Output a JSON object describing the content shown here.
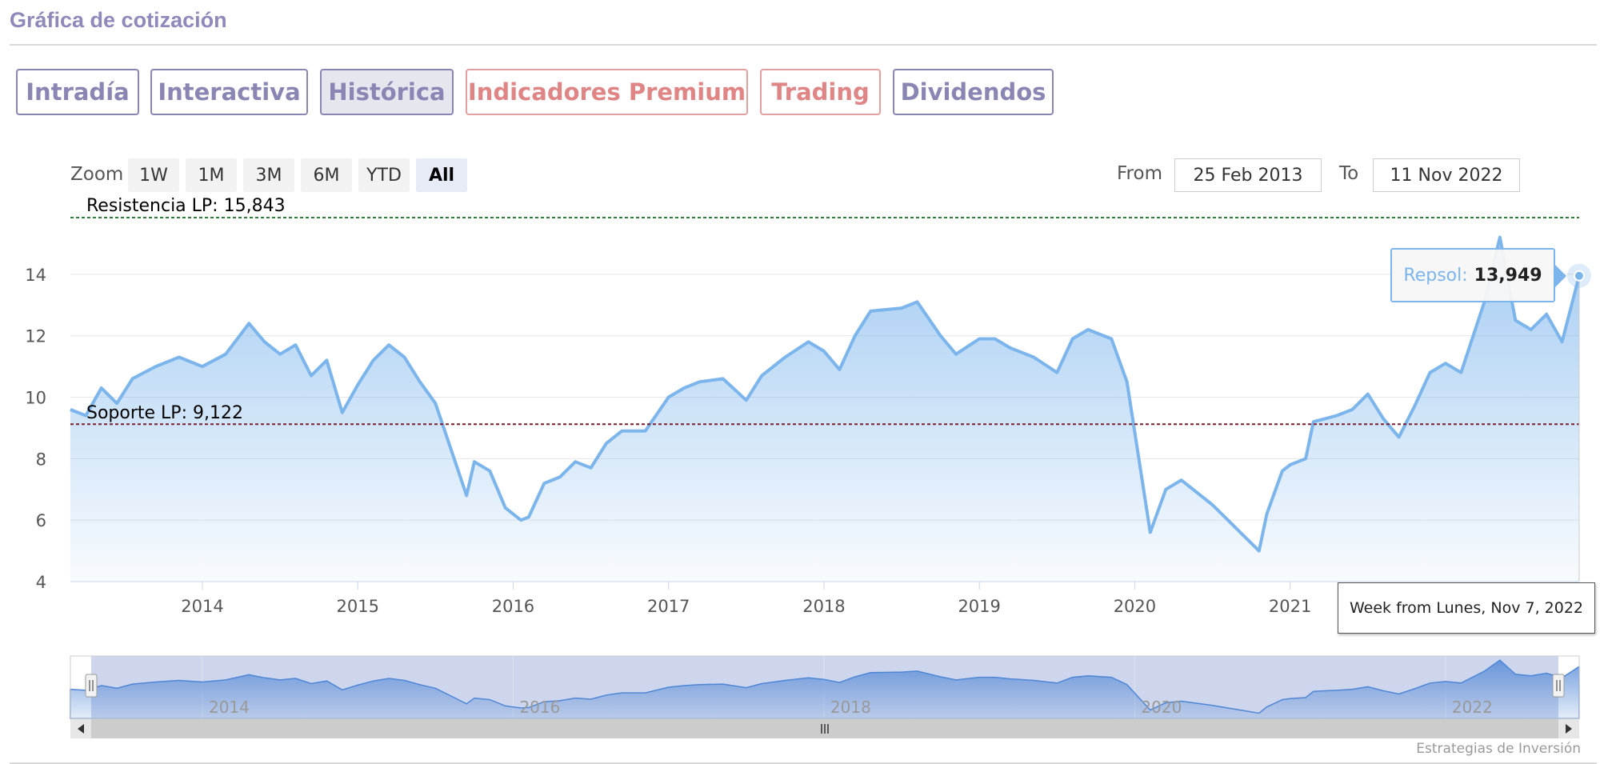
{
  "page": {
    "title": "Gráfica de cotización"
  },
  "tabs": [
    {
      "label": "Intradía"
    },
    {
      "label": "Interactiva"
    },
    {
      "label": "Histórica"
    },
    {
      "label": "Indicadores Premium"
    },
    {
      "label": "Trading"
    },
    {
      "label": "Dividendos"
    }
  ],
  "range_selector": {
    "zoom_label": "Zoom",
    "buttons": [
      "1W",
      "1M",
      "3M",
      "6M",
      "YTD",
      "All"
    ],
    "selected": "All",
    "from_label": "From",
    "from_value": "25 Feb 2013",
    "to_label": "To",
    "to_value": "11 Nov 2022"
  },
  "tooltip": {
    "series": "Repsol",
    "value": "13,949",
    "x_label": "Week from Lunes, Nov 7, 2022"
  },
  "credits": "Estrategias de Inversión",
  "colors": {
    "series": "#7cb5ec",
    "resistance": "#2e7d32",
    "support": "#7a1f2e",
    "tab_border": "#8a86b4",
    "premium": "#e08585"
  },
  "chart_data": {
    "type": "area",
    "title": "",
    "series_name": "Repsol",
    "x_unit": "year",
    "ylim": [
      4,
      15.843
    ],
    "xlim": [
      "2013-02-25",
      "2022-11-11"
    ],
    "yticks": [
      4,
      6,
      8,
      10,
      12,
      14
    ],
    "xticks": [
      "2014",
      "2015",
      "2016",
      "2017",
      "2018",
      "2019",
      "2020",
      "2021"
    ],
    "navigator_xticks": [
      "2014",
      "2016",
      "2018",
      "2020",
      "2022"
    ],
    "grid": true,
    "x": [
      2013.15,
      2013.25,
      2013.35,
      2013.45,
      2013.55,
      2013.7,
      2013.85,
      2014.0,
      2014.15,
      2014.3,
      2014.4,
      2014.5,
      2014.6,
      2014.7,
      2014.8,
      2014.9,
      2015.0,
      2015.1,
      2015.2,
      2015.3,
      2015.4,
      2015.5,
      2015.6,
      2015.7,
      2015.75,
      2015.85,
      2015.95,
      2016.05,
      2016.1,
      2016.2,
      2016.3,
      2016.4,
      2016.5,
      2016.6,
      2016.7,
      2016.85,
      2017.0,
      2017.1,
      2017.2,
      2017.35,
      2017.5,
      2017.6,
      2017.75,
      2017.9,
      2018.0,
      2018.1,
      2018.2,
      2018.3,
      2018.5,
      2018.6,
      2018.75,
      2018.85,
      2019.0,
      2019.1,
      2019.2,
      2019.35,
      2019.5,
      2019.6,
      2019.7,
      2019.85,
      2019.95,
      2020.1,
      2020.2,
      2020.3,
      2020.4,
      2020.5,
      2020.6,
      2020.7,
      2020.8,
      2020.85,
      2020.95,
      2021.0,
      2021.1,
      2021.15,
      2021.3,
      2021.4,
      2021.5,
      2021.6,
      2021.7,
      2021.8,
      2021.9,
      2022.0,
      2022.1,
      2022.25,
      2022.35,
      2022.45,
      2022.55,
      2022.65,
      2022.75,
      2022.86
    ],
    "y": [
      9.6,
      9.4,
      10.3,
      9.8,
      10.6,
      11.0,
      11.3,
      11.0,
      11.4,
      12.4,
      11.8,
      11.4,
      11.7,
      10.7,
      11.2,
      9.5,
      10.4,
      11.2,
      11.7,
      11.3,
      10.5,
      9.8,
      8.3,
      6.8,
      7.9,
      7.6,
      6.4,
      6.0,
      6.1,
      7.2,
      7.4,
      7.9,
      7.7,
      8.5,
      8.9,
      8.9,
      10.0,
      10.3,
      10.5,
      10.6,
      9.9,
      10.7,
      11.3,
      11.8,
      11.5,
      10.9,
      12.0,
      12.8,
      12.9,
      13.1,
      12.0,
      11.4,
      11.9,
      11.9,
      11.6,
      11.3,
      10.8,
      11.9,
      12.2,
      11.9,
      10.5,
      5.6,
      7.0,
      7.3,
      6.9,
      6.5,
      6.0,
      5.5,
      5.0,
      6.2,
      7.6,
      7.8,
      8.0,
      9.2,
      9.4,
      9.6,
      10.1,
      9.3,
      8.7,
      9.7,
      10.8,
      11.1,
      10.8,
      13.1,
      15.2,
      12.5,
      12.2,
      12.7,
      11.8,
      13.949
    ]
  }
}
